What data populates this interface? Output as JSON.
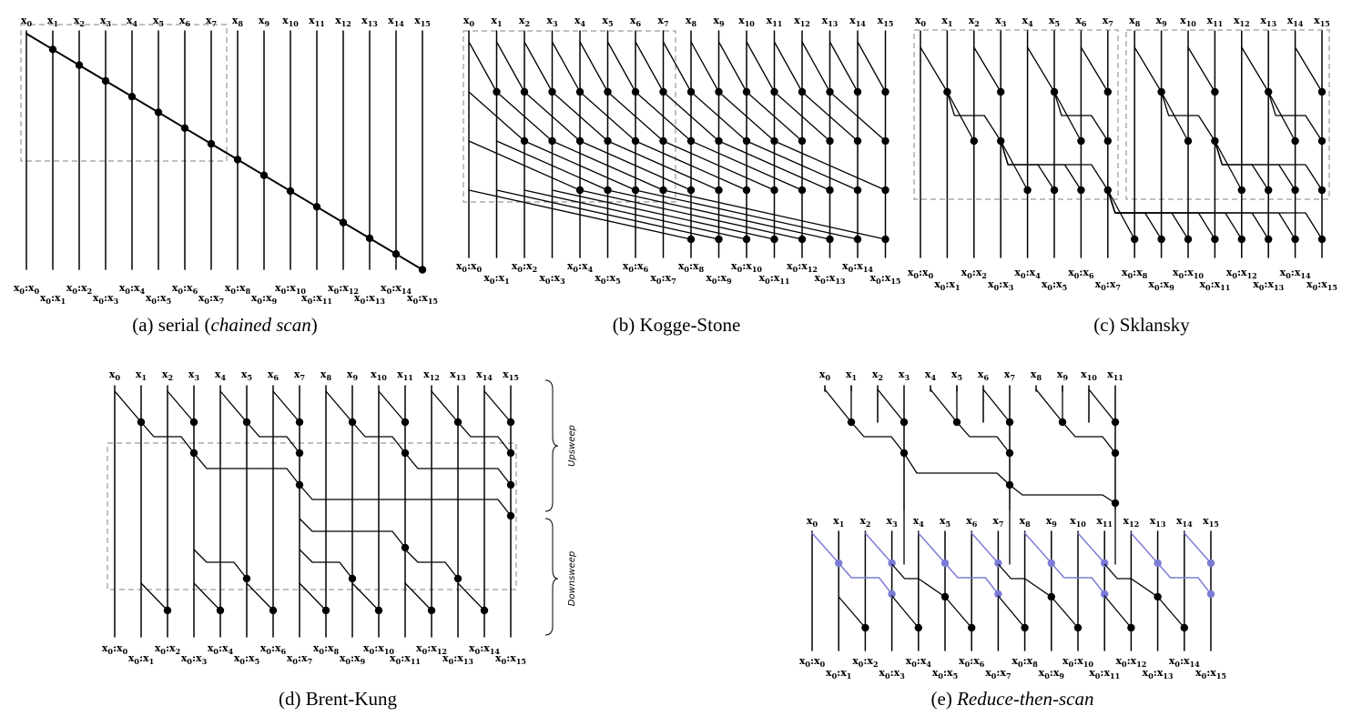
{
  "captions": {
    "a": {
      "main": "(a) serial (",
      "em": "chained scan",
      "tail": ")"
    },
    "b": "(b) Kogge-Stone",
    "c": "(c) Sklansky",
    "d": "(d) Brent-Kung",
    "e_prefix": "(e) ",
    "e_em": "Reduce-then-scan"
  },
  "side_labels": {
    "upsweep": "Upsweep",
    "downsweep": "Downsweep"
  },
  "input_label": {
    "var": "x"
  },
  "output_label": {
    "left": "x",
    "left_sub": "0",
    "sep": ":",
    "right": "x"
  },
  "colors": {
    "ink": "#000000",
    "box": "#999999",
    "blue": "#7b7bd6"
  }
}
